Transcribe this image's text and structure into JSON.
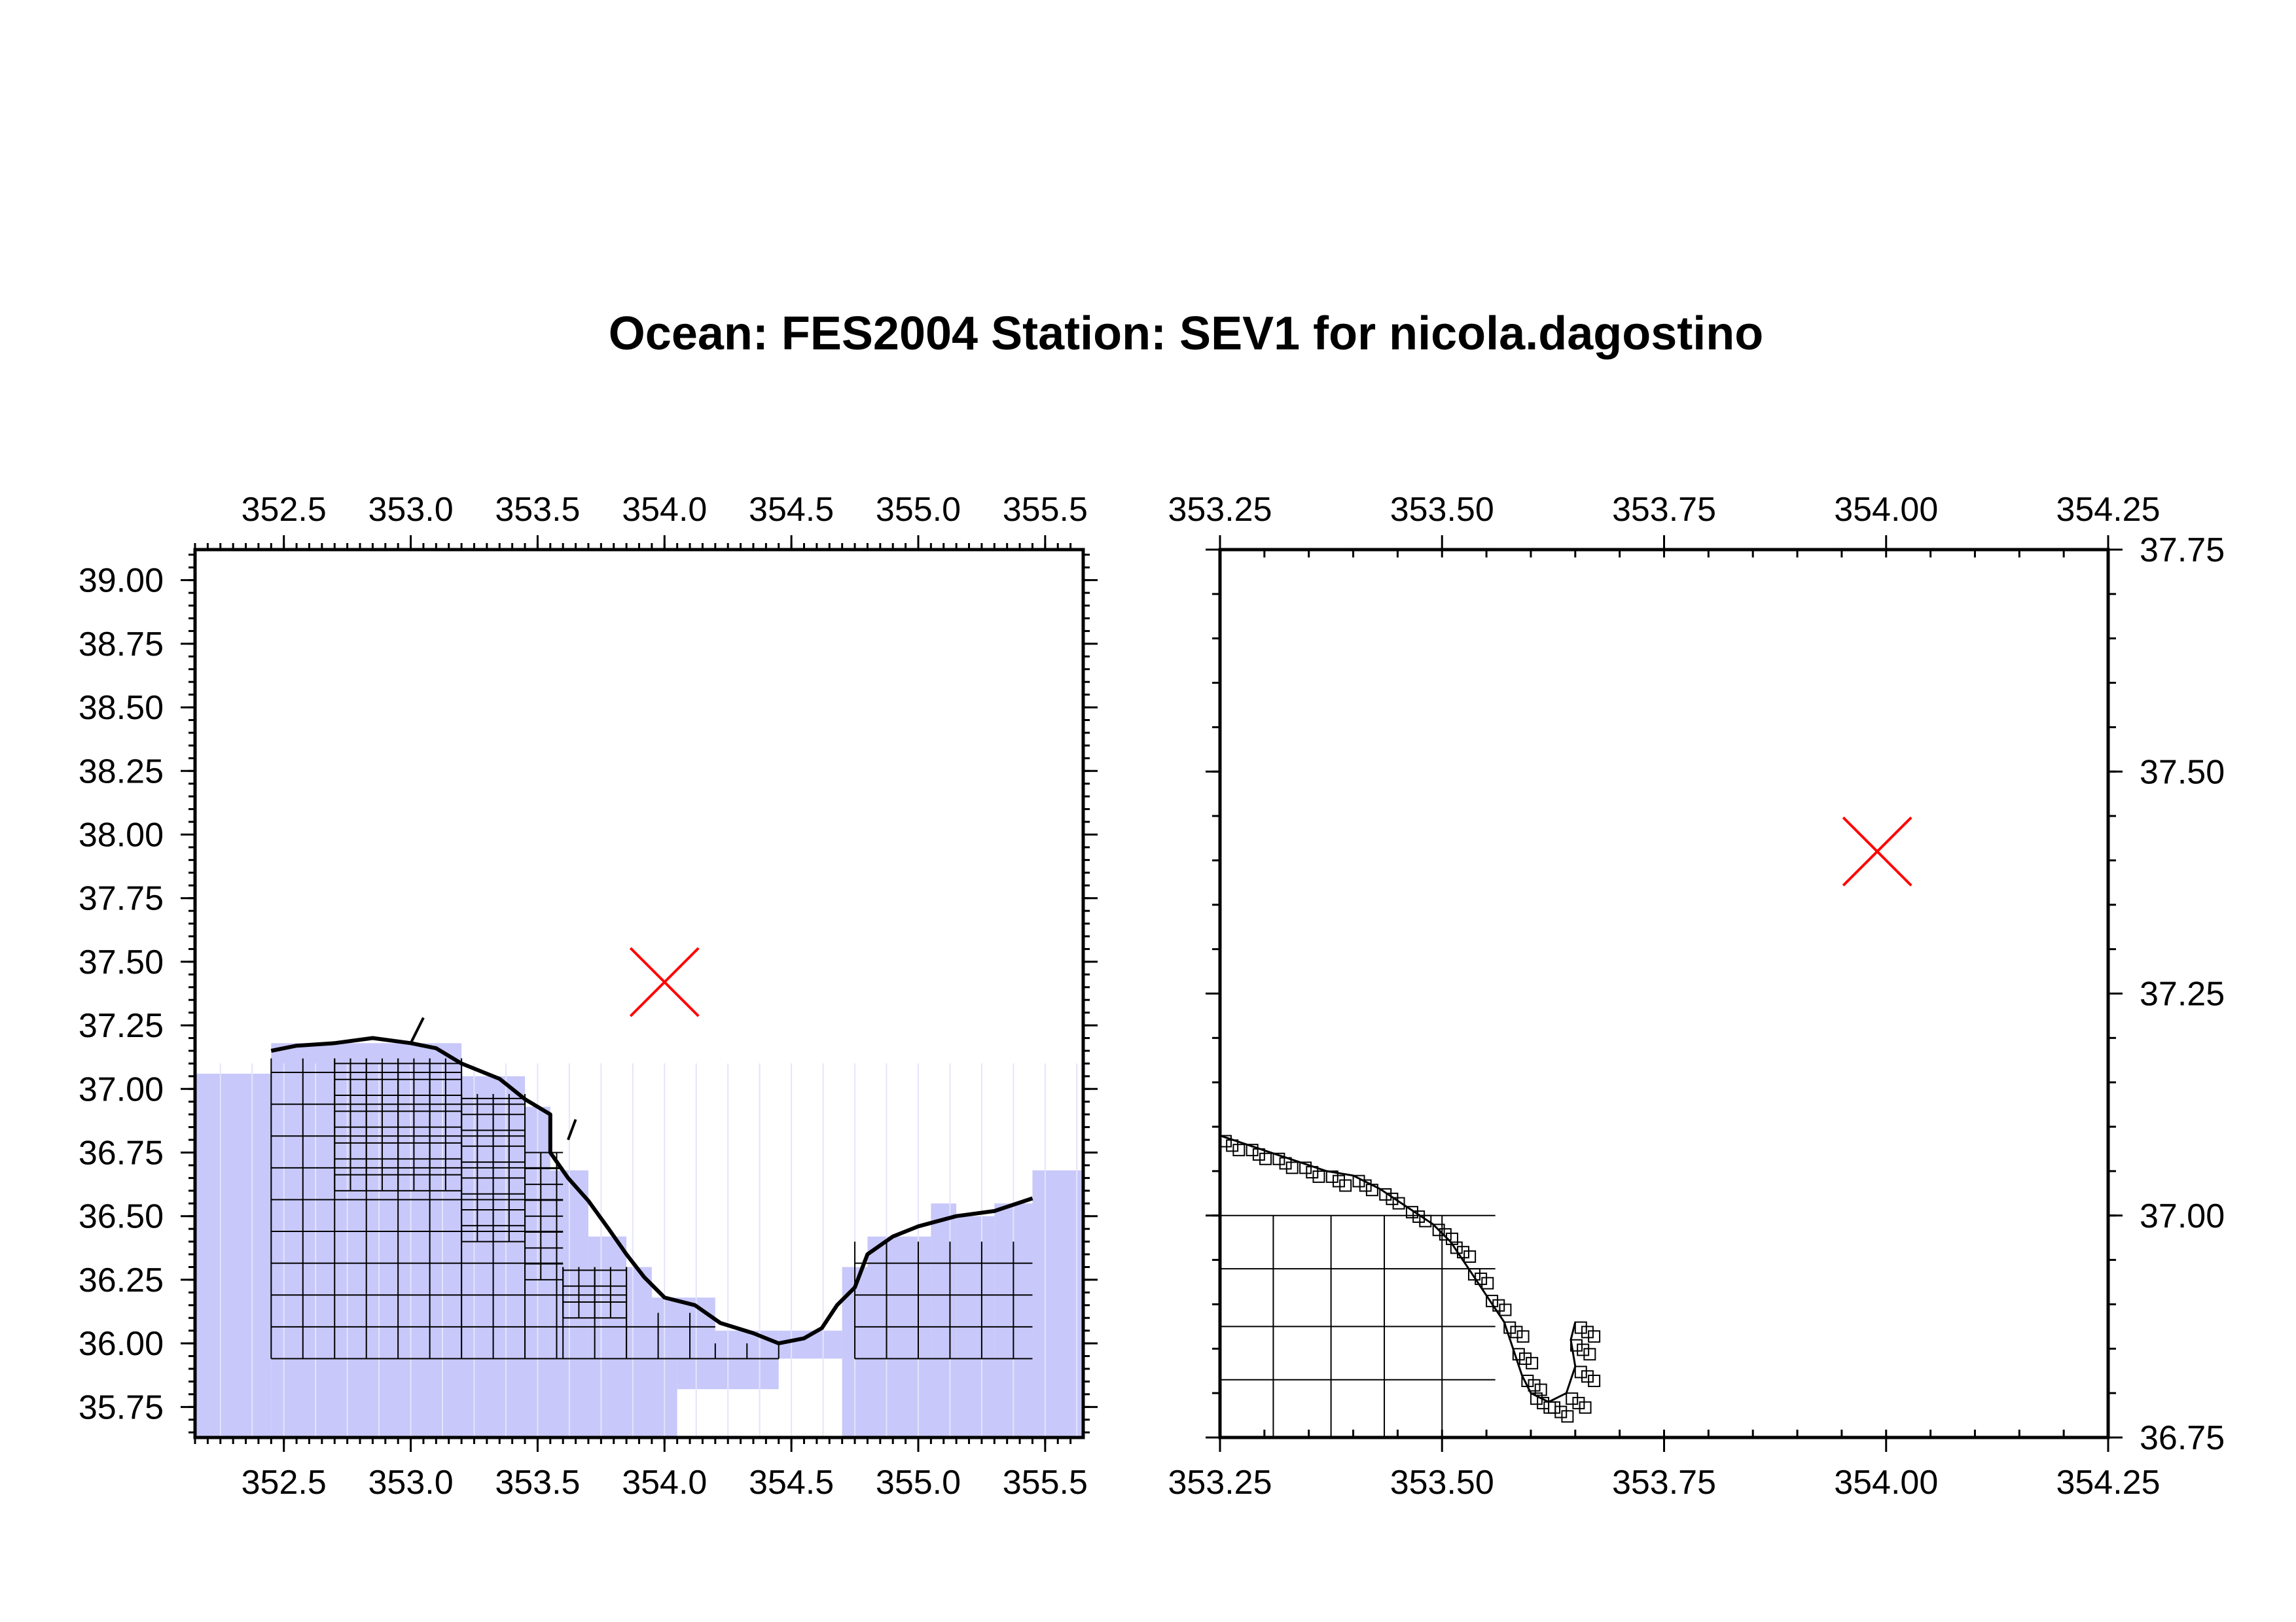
{
  "title": "Ocean: FES2004  Station: SEV1  for nicola.dagostino",
  "colors": {
    "ocean_fill": "#c8c8fa",
    "grid_line": "#000000",
    "station_marker": "#ff0000",
    "frame": "#000000",
    "background": "#ffffff"
  },
  "panels": [
    {
      "id": "overview",
      "xlim": [
        352.15,
        355.65
      ],
      "ylim": [
        35.63,
        39.12
      ],
      "x_ticks": [
        "352.5",
        "353.0",
        "353.5",
        "354.0",
        "354.5",
        "355.0",
        "355.5"
      ],
      "y_ticks": [
        "35.75",
        "36.00",
        "36.25",
        "36.50",
        "36.75",
        "37.00",
        "37.25",
        "37.50",
        "37.75",
        "38.00",
        "38.25",
        "38.50",
        "38.75",
        "39.00"
      ],
      "x_labels_top": true,
      "x_labels_bottom": true,
      "y_label_side": "left",
      "station": {
        "lon": 354.0,
        "lat": 37.42
      }
    },
    {
      "id": "zoom",
      "xlim": [
        353.25,
        354.25
      ],
      "ylim": [
        36.75,
        37.75
      ],
      "x_ticks": [
        "353.25",
        "353.50",
        "353.75",
        "354.00",
        "354.25"
      ],
      "y_ticks": [
        "36.75",
        "37.00",
        "37.25",
        "37.50",
        "37.75"
      ],
      "x_labels_top": true,
      "x_labels_bottom": true,
      "y_label_side": "right",
      "station": {
        "lon": 353.99,
        "lat": 37.41
      }
    }
  ]
}
